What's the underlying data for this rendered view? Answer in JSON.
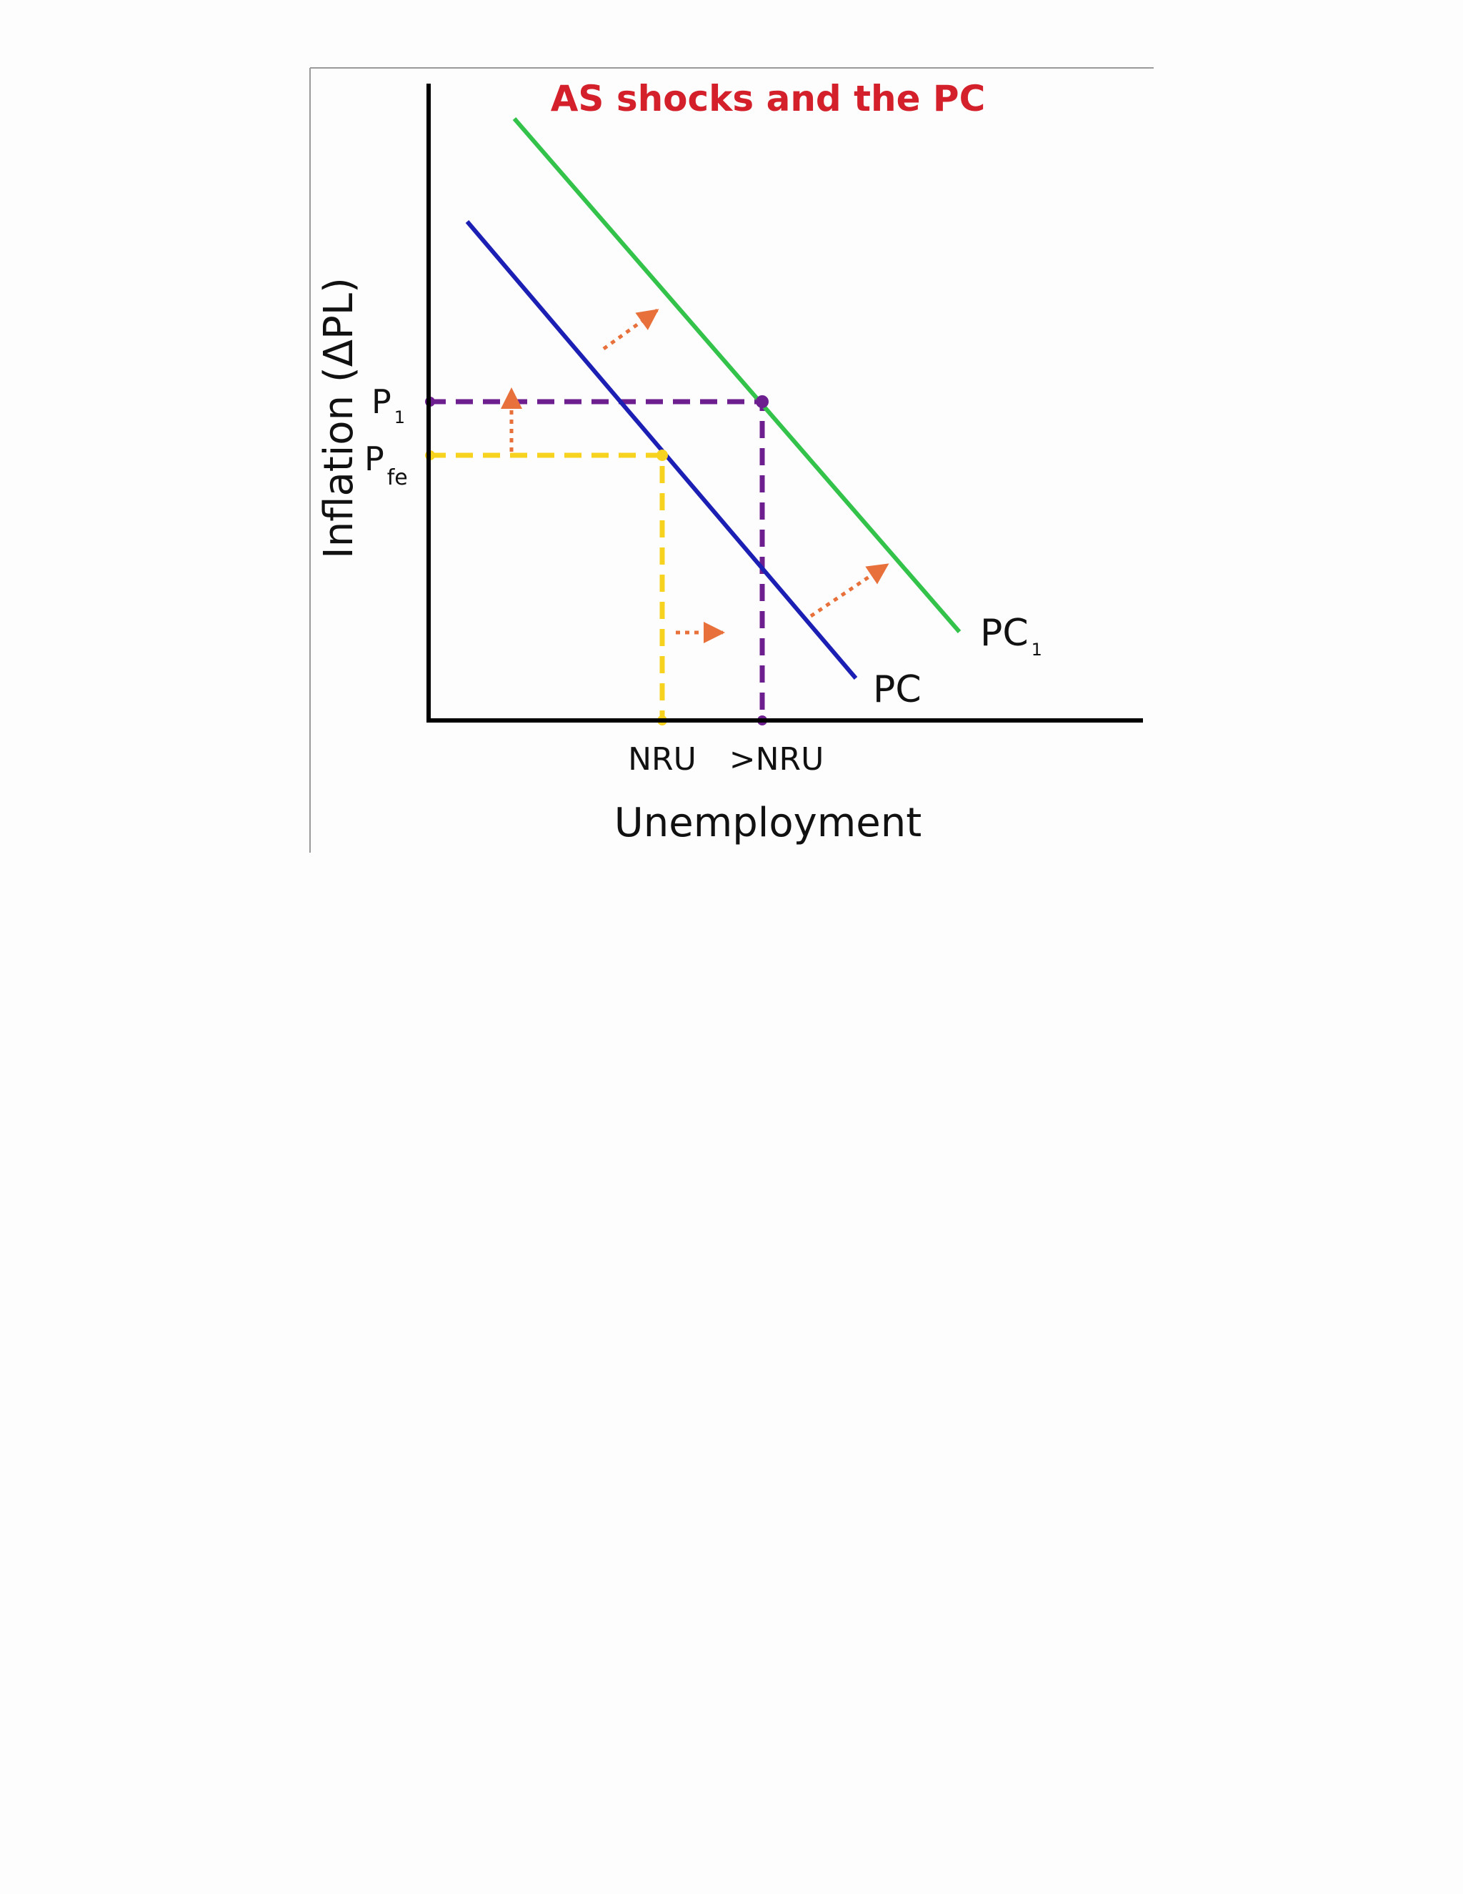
{
  "chart_data": {
    "type": "line",
    "title": "AS shocks and the PC",
    "xlabel": "Unemployment",
    "ylabel": "Inflation (ΔPL)",
    "x_ticks": [
      {
        "key": "nru",
        "label": "NRU",
        "sub": ""
      },
      {
        "key": "gt_nru",
        "label": ">NRU",
        "sub": ""
      }
    ],
    "y_ticks": [
      {
        "key": "p1",
        "label": "P",
        "sub": "1"
      },
      {
        "key": "pfe",
        "label": "P",
        "sub": "fe"
      }
    ],
    "series": [
      {
        "key": "pc",
        "name": "PC",
        "name_sub": "",
        "color": "#1c1fb4"
      },
      {
        "key": "pc1",
        "name": "PC",
        "name_sub": "1",
        "color": "#33c24a"
      }
    ],
    "reference_lines": [
      {
        "key": "pfe_nru",
        "color": "#f7d21f",
        "from_x_tick": "nru",
        "from_y_tick": "pfe"
      },
      {
        "key": "p1_gtnru",
        "color": "#6d1f8f",
        "from_x_tick": "gt_nru",
        "from_y_tick": "p1"
      }
    ],
    "shift_arrows": {
      "color": "#e8703a",
      "count": 4,
      "style": "dotted",
      "direction": "up-right"
    },
    "grid": false,
    "legend": "none (curves labeled at their right ends)"
  },
  "colors": {
    "title": "#d3202a",
    "axis": "#000000",
    "frame": "#9a9a9a"
  }
}
